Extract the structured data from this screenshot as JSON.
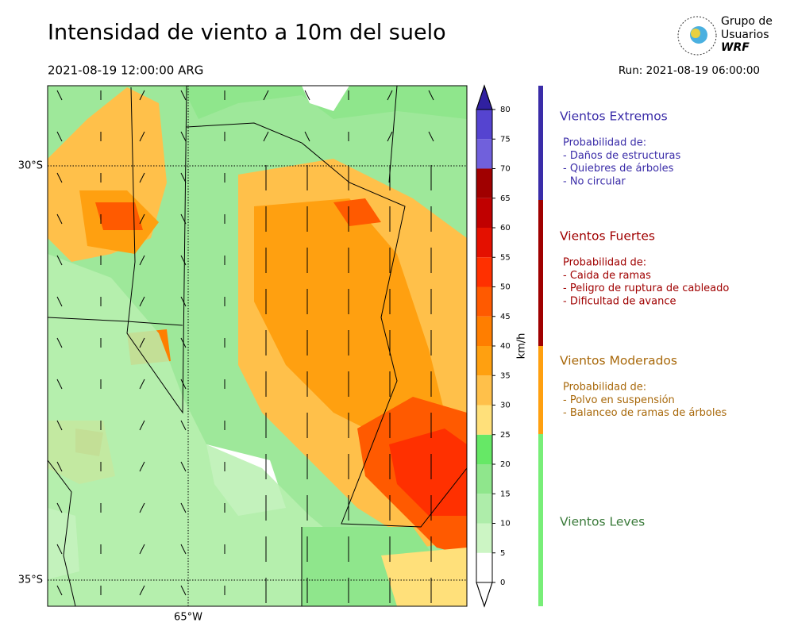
{
  "header": {
    "title": "Intensidad de viento a 10m del suelo",
    "valid_time": "2021-08-19 12:00:00 ARG",
    "run": "Run: 2021-08-19 06:00:00",
    "logo": [
      "Grupo de",
      "Usuarios",
      "WRF"
    ]
  },
  "map": {
    "lat_labels": [
      "30°S",
      "35°S"
    ],
    "lon_labels": [
      "65°W"
    ]
  },
  "colorbar": {
    "label": "km/h",
    "ticks": [
      0,
      5,
      10,
      15,
      20,
      25,
      30,
      35,
      40,
      45,
      50,
      55,
      60,
      65,
      70,
      75,
      80
    ],
    "colors": [
      "#ffffff",
      "#ccf5c4",
      "#aeedaa",
      "#8fe68c",
      "#66e866",
      "#ffe07a",
      "#ffc04a",
      "#ffa010",
      "#ff7e00",
      "#ff5a00",
      "#ff3000",
      "#e41000",
      "#c00000",
      "#a00000",
      "#7060dc",
      "#5544d0",
      "#3c2cb4"
    ],
    "under_color": "#ffffff",
    "over_color": "#3020a0"
  },
  "legend": [
    {
      "title": "Vientos Extremos",
      "color": "#3a2ca8",
      "lines": [
        "Probabilidad de:",
        "- Daños de estructuras",
        "- Quiebres de árboles",
        "- No circular"
      ]
    },
    {
      "title": "Vientos Fuertes",
      "color": "#a00000",
      "lines": [
        "Probabilidad de:",
        "- Caida de ramas",
        "- Peligro de ruptura de cableado",
        "- Dificultad de avance"
      ]
    },
    {
      "title": "Vientos Moderados",
      "color": "#a8680a",
      "lines": [
        "Probabilidad de:",
        "- Polvo en suspensión",
        "- Balanceo de ramas de árboles"
      ]
    },
    {
      "title": "Vientos Leves",
      "color": "#3a7a3a",
      "lines": []
    }
  ]
}
